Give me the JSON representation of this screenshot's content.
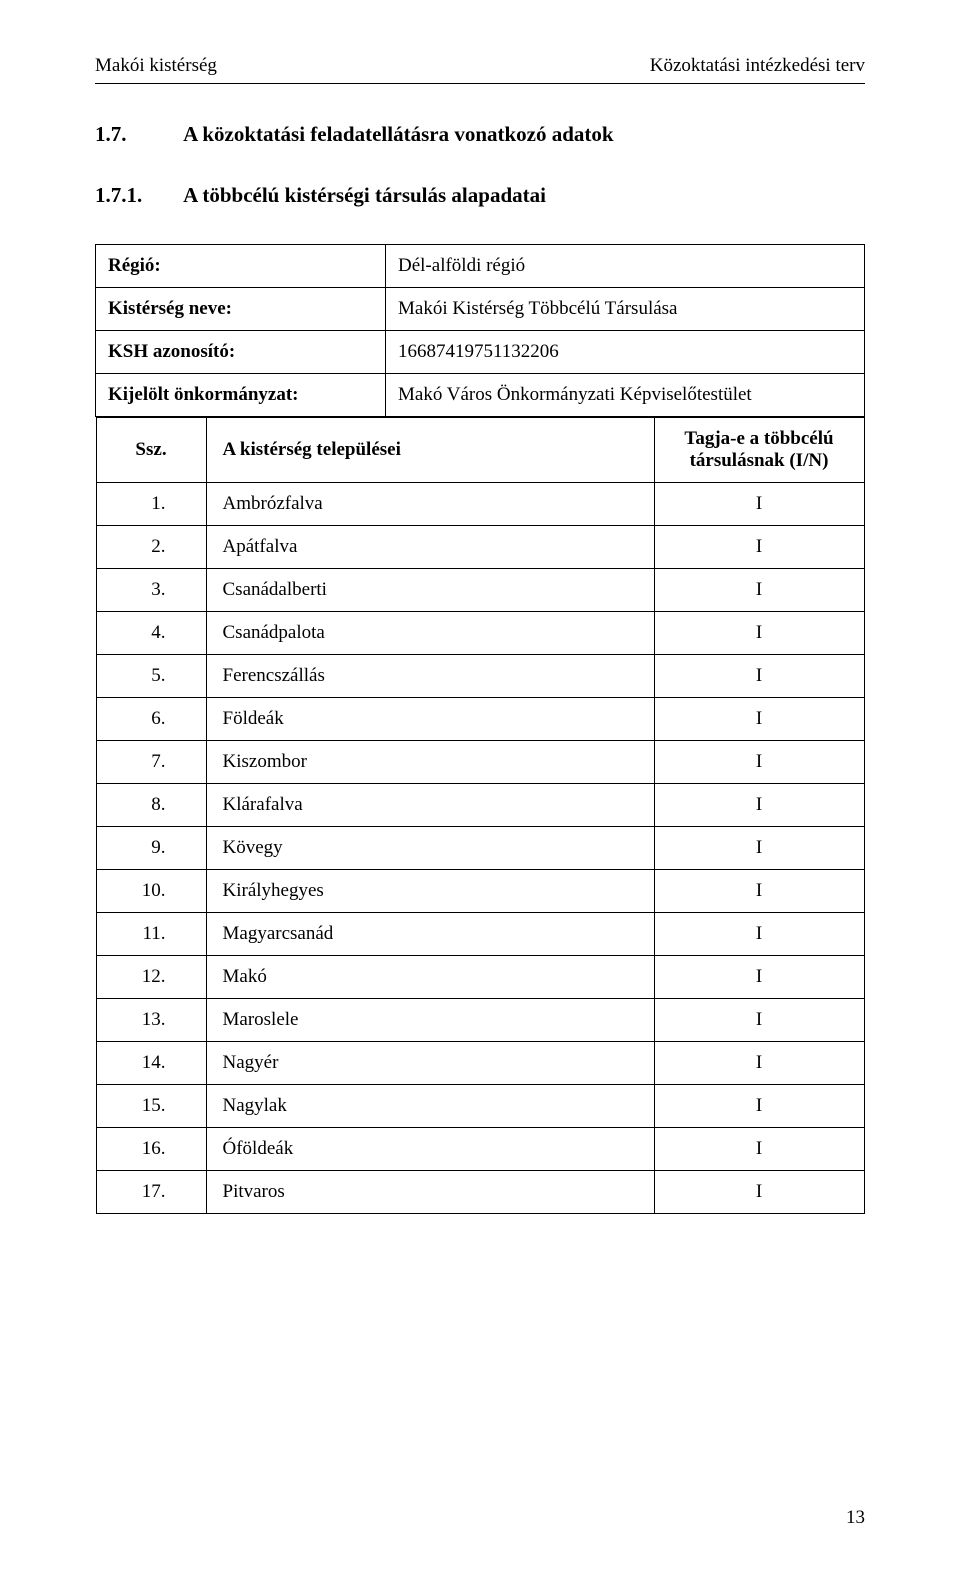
{
  "header": {
    "left": "Makói kistérség",
    "right": "Közoktatási intézkedési terv"
  },
  "section": {
    "num1": "1.7.",
    "title1": "A közoktatási feladatellátásra vonatkozó adatok",
    "num2": "1.7.1.",
    "title2": "A többcélú kistérségi társulás alapadatai"
  },
  "info": {
    "region_label": "Régió:",
    "region_value": "Dél-alföldi régió",
    "kisterseg_label": "Kistérség neve:",
    "kisterseg_value": "Makói Kistérség Többcélú Társulása",
    "ksh_label": "KSH azonosító:",
    "ksh_value": "16687419751132206",
    "onk_label": "Kijelölt önkormányzat:",
    "onk_value": "Makó Város Önkormányzati Képviselőtestület"
  },
  "table": {
    "col_ssz": "Ssz.",
    "col_name": "A kistérség települései",
    "col_tag_line1": "Tagja-e a többcélú",
    "col_tag_line2": "társulásnak (I/N)",
    "rows": [
      {
        "ssz": "1.",
        "name": "Ambrózfalva",
        "tag": "I"
      },
      {
        "ssz": "2.",
        "name": "Apátfalva",
        "tag": "I"
      },
      {
        "ssz": "3.",
        "name": "Csanádalberti",
        "tag": "I"
      },
      {
        "ssz": "4.",
        "name": "Csanádpalota",
        "tag": "I"
      },
      {
        "ssz": "5.",
        "name": "Ferencszállás",
        "tag": "I"
      },
      {
        "ssz": "6.",
        "name": "Földeák",
        "tag": "I"
      },
      {
        "ssz": "7.",
        "name": "Kiszombor",
        "tag": "I"
      },
      {
        "ssz": "8.",
        "name": "Klárafalva",
        "tag": "I"
      },
      {
        "ssz": "9.",
        "name": "Kövegy",
        "tag": "I"
      },
      {
        "ssz": "10.",
        "name": "Királyhegyes",
        "tag": "I"
      },
      {
        "ssz": "11.",
        "name": "Magyarcsanád",
        "tag": "I"
      },
      {
        "ssz": "12.",
        "name": "Makó",
        "tag": "I"
      },
      {
        "ssz": "13.",
        "name": "Maroslele",
        "tag": "I"
      },
      {
        "ssz": "14.",
        "name": "Nagyér",
        "tag": "I"
      },
      {
        "ssz": "15.",
        "name": "Nagylak",
        "tag": "I"
      },
      {
        "ssz": "16.",
        "name": "Óföldeák",
        "tag": "I"
      },
      {
        "ssz": "17.",
        "name": "Pitvaros",
        "tag": "I"
      }
    ]
  },
  "page_number": "13"
}
